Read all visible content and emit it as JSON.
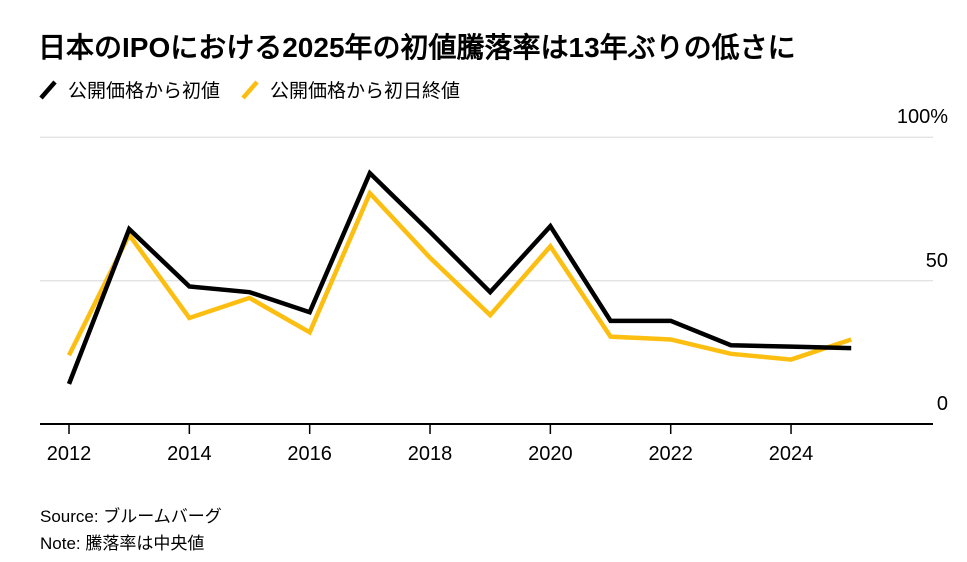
{
  "title": "日本のIPOにおける2025年の初値騰落率は13年ぶりの低さに",
  "legend": [
    {
      "label": "公開価格から初値",
      "color": "#000000"
    },
    {
      "label": "公開価格から初日終値",
      "color": "#fcbf11"
    }
  ],
  "footer": {
    "source": "Source: ブルームバーグ",
    "note": "Note: 騰落率は中央値"
  },
  "colors": {
    "series_black": "#000000",
    "series_gold": "#fcbf11",
    "gridline": "#e3e3e3",
    "axis": "#000000",
    "background": "#ffffff"
  },
  "chart_data": {
    "type": "line",
    "title": "日本のIPOにおける2025年の初値騰落率は13年ぶりの低さに",
    "x": [
      2012,
      2013,
      2014,
      2015,
      2016,
      2017,
      2018,
      2019,
      2020,
      2021,
      2022,
      2023,
      2024,
      2025
    ],
    "series": [
      {
        "name": "公開価格から初値",
        "color": "#000000",
        "values": [
          14,
          68,
          48,
          46,
          39,
          87.5,
          67,
          46,
          69,
          36,
          36,
          27.5,
          27,
          26.5
        ]
      },
      {
        "name": "公開価格から初日終値",
        "color": "#fcbf11",
        "values": [
          24,
          66,
          37,
          44,
          32,
          80.5,
          58,
          38,
          62,
          30.5,
          29.5,
          24.5,
          22.5,
          29.5
        ]
      }
    ],
    "ylim": [
      0,
      100
    ],
    "yticks": [
      {
        "value": 0,
        "label": "0"
      },
      {
        "value": 50,
        "label": "50"
      },
      {
        "value": 100,
        "label": "100%"
      }
    ],
    "grid_values": [
      50,
      100
    ],
    "xticks": [
      {
        "value": 2012,
        "label": "2012"
      },
      {
        "value": 2014,
        "label": "2014"
      },
      {
        "value": 2016,
        "label": "2016"
      },
      {
        "value": 2018,
        "label": "2018"
      },
      {
        "value": 2020,
        "label": "2020"
      },
      {
        "value": 2022,
        "label": "2022"
      },
      {
        "value": 2024,
        "label": "2024"
      }
    ],
    "legend_position": "top-left",
    "grid": "horizontal",
    "unit": "%"
  }
}
